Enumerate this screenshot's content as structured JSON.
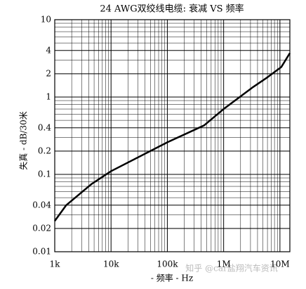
{
  "chart_data": {
    "type": "line",
    "title": "24 AWG双绞线电缆: 衰减 VS 频率",
    "x_label": "- 频率 - Hz",
    "y_label": "失真 - dB/30米",
    "watermark": "知乎 @car盐翔汽车资讯",
    "x": [
      1000,
      1600,
      4500,
      10000,
      100000,
      450000,
      1000000,
      3350000,
      6000000,
      10600000,
      15000000
    ],
    "series": [
      {
        "color": "#000000",
        "values": [
          0.025,
          0.04,
          0.075,
          0.11,
          0.26,
          0.43,
          0.7,
          1.35,
          1.8,
          2.45,
          3.7
        ]
      }
    ],
    "xlog": true,
    "ylog": true,
    "xlim": [
      1000,
      15000000
    ],
    "ylim": [
      0.01,
      10
    ],
    "xticks": [
      {
        "value": 1000,
        "label": "1k"
      },
      {
        "value": 10000,
        "label": "10k"
      },
      {
        "value": 100000,
        "label": "100k"
      },
      {
        "value": 1000000,
        "label": "1M"
      },
      {
        "value": 10000000,
        "label": "10M"
      }
    ],
    "yticks": [
      0.01,
      0.02,
      0.04,
      0.1,
      0.2,
      0.4,
      1,
      2,
      4,
      10
    ],
    "grid": true,
    "minor_grid": true
  }
}
